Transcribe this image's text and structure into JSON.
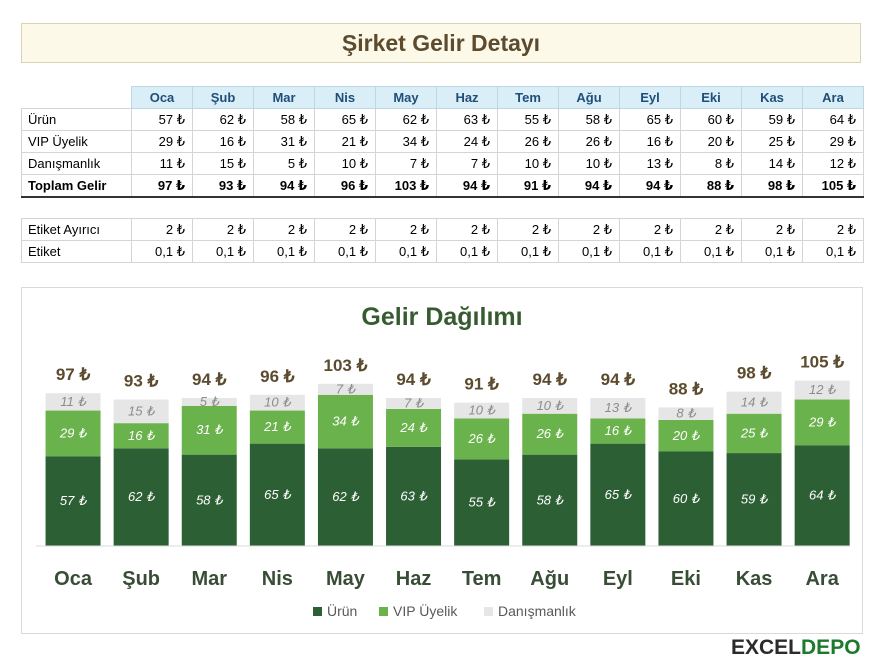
{
  "title": "Şirket Gelir Detayı",
  "months": [
    "Oca",
    "Şub",
    "Mar",
    "Nis",
    "May",
    "Haz",
    "Tem",
    "Ağu",
    "Eyl",
    "Eki",
    "Kas",
    "Ara"
  ],
  "table1": {
    "rows": [
      {
        "label": "Ürün",
        "values": [
          "57 ₺",
          "62 ₺",
          "58 ₺",
          "65 ₺",
          "62 ₺",
          "63 ₺",
          "55 ₺",
          "58 ₺",
          "65 ₺",
          "60 ₺",
          "59 ₺",
          "64 ₺"
        ]
      },
      {
        "label": "VIP Üyelik",
        "values": [
          "29 ₺",
          "16 ₺",
          "31 ₺",
          "21 ₺",
          "34 ₺",
          "24 ₺",
          "26 ₺",
          "26 ₺",
          "16 ₺",
          "20 ₺",
          "25 ₺",
          "29 ₺"
        ]
      },
      {
        "label": "Danışmanlık",
        "values": [
          "11 ₺",
          "15 ₺",
          "5 ₺",
          "10 ₺",
          "7 ₺",
          "7 ₺",
          "10 ₺",
          "10 ₺",
          "13 ₺",
          "8 ₺",
          "14 ₺",
          "12 ₺"
        ]
      },
      {
        "label": "Toplam Gelir",
        "values": [
          "97 ₺",
          "93 ₺",
          "94 ₺",
          "96 ₺",
          "103 ₺",
          "94 ₺",
          "91 ₺",
          "94 ₺",
          "94 ₺",
          "88 ₺",
          "98 ₺",
          "105 ₺"
        ]
      }
    ]
  },
  "table2": {
    "rows": [
      {
        "label": "Etiket Ayırıcı",
        "values": [
          "2 ₺",
          "2 ₺",
          "2 ₺",
          "2 ₺",
          "2 ₺",
          "2 ₺",
          "2 ₺",
          "2 ₺",
          "2 ₺",
          "2 ₺",
          "2 ₺",
          "2 ₺"
        ]
      },
      {
        "label": "Etiket",
        "values": [
          "0,1 ₺",
          "0,1 ₺",
          "0,1 ₺",
          "0,1 ₺",
          "0,1 ₺",
          "0,1 ₺",
          "0,1 ₺",
          "0,1 ₺",
          "0,1 ₺",
          "0,1 ₺",
          "0,1 ₺",
          "0,1 ₺"
        ]
      }
    ]
  },
  "chart_data": {
    "type": "bar",
    "stacked": true,
    "title": "Gelir Dağılımı",
    "categories": [
      "Oca",
      "Şub",
      "Mar",
      "Nis",
      "May",
      "Haz",
      "Tem",
      "Ağu",
      "Eyl",
      "Eki",
      "Kas",
      "Ara"
    ],
    "series": [
      {
        "name": "Ürün",
        "color": "#2d5f35",
        "values": [
          57,
          62,
          58,
          65,
          62,
          63,
          55,
          58,
          65,
          60,
          59,
          64
        ]
      },
      {
        "name": "VIP Üyelik",
        "color": "#6ab34c",
        "values": [
          29,
          16,
          31,
          21,
          34,
          24,
          26,
          26,
          16,
          20,
          25,
          29
        ]
      },
      {
        "name": "Danışmanlık",
        "color": "#e6e6e6",
        "values": [
          11,
          15,
          5,
          10,
          7,
          7,
          10,
          10,
          13,
          8,
          14,
          12
        ]
      }
    ],
    "totals": [
      97,
      93,
      94,
      96,
      103,
      94,
      91,
      94,
      94,
      88,
      98,
      105
    ],
    "currency": "₺",
    "ylim": [
      0,
      110
    ],
    "legend": "bottom",
    "grid": false
  },
  "logo": {
    "part1": "EXCEL",
    "part2": "DEPO"
  }
}
